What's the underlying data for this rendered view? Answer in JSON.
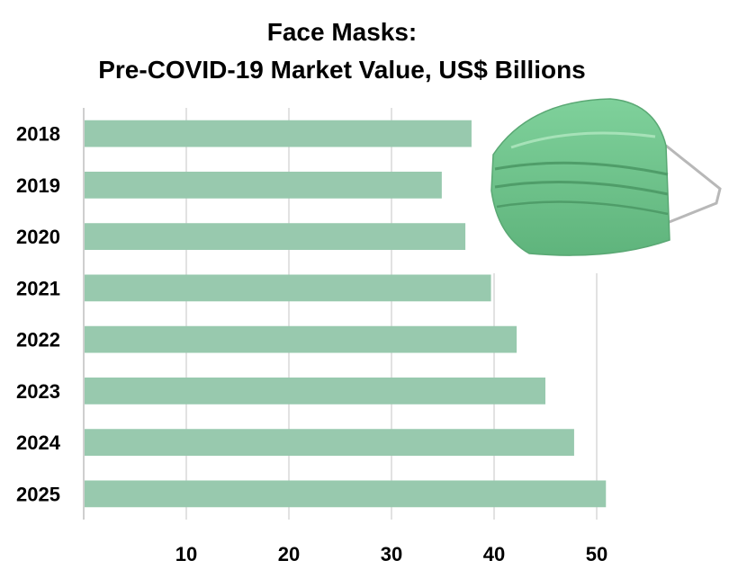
{
  "chart_data": {
    "type": "bar",
    "orientation": "horizontal",
    "title": "Face Masks:",
    "subtitle": "Pre-COVID-19 Market Value, US$ Billions",
    "categories": [
      "2018",
      "2019",
      "2020",
      "2021",
      "2022",
      "2023",
      "2024",
      "2025"
    ],
    "values": [
      37.8,
      34.9,
      37.2,
      39.7,
      42.2,
      45.0,
      47.8,
      50.9
    ],
    "xlabel": "",
    "ylabel": "",
    "xlim": [
      0,
      60
    ],
    "xticks": [
      10,
      20,
      30,
      40,
      50
    ],
    "grid": true,
    "legend": "none",
    "colors": {
      "bar": "#98c9ae",
      "grid": "#d9d9d9",
      "axis": "#bfbfbf",
      "text": "#000000"
    }
  },
  "image": {
    "icon": "surgical-mask-icon"
  }
}
